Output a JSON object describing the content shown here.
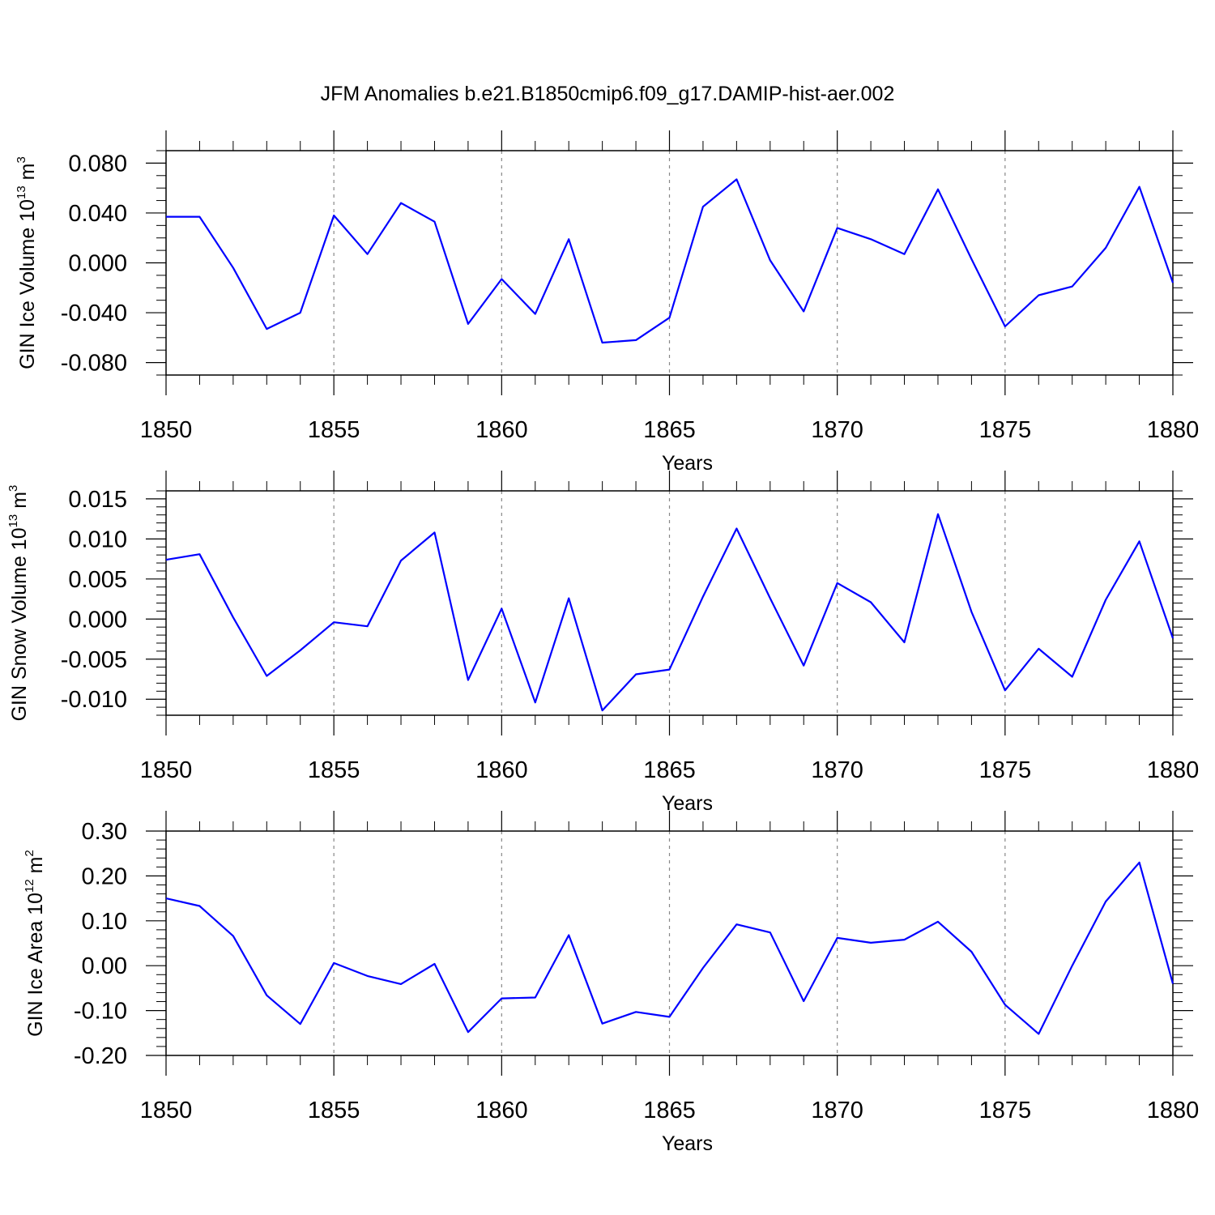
{
  "figure": {
    "title": "JFM Anomalies b.e21.B1850cmip6.f09_g17.DAMIP-hist-aer.002",
    "line_color": "#0000FF",
    "grid_color": "#888888"
  },
  "chart_data": [
    {
      "type": "line",
      "title": "JFM Anomalies b.e21.B1850cmip6.f09_g17.DAMIP-hist-aer.002",
      "xlabel": "Years",
      "ylabel": {
        "base": "GIN Ice Volume 10",
        "exp1": "13",
        "mid": " m",
        "exp2": "3"
      },
      "xlim": [
        1850,
        1880
      ],
      "ylim": [
        -0.09,
        0.09
      ],
      "xticks": [
        1850,
        1855,
        1860,
        1865,
        1870,
        1875,
        1880
      ],
      "xtick_labels": [
        "1850",
        "1855",
        "1860",
        "1865",
        "1870",
        "1875",
        "1880"
      ],
      "yticks": [
        -0.08,
        -0.04,
        0.0,
        0.04,
        0.08
      ],
      "ytick_labels": [
        "-0.080",
        "-0.040",
        "0.000",
        "0.040",
        "0.080"
      ],
      "grid": "vertical-dashed",
      "x": [
        1850,
        1851,
        1852,
        1853,
        1854,
        1855,
        1856,
        1857,
        1858,
        1859,
        1860,
        1861,
        1862,
        1863,
        1864,
        1865,
        1866,
        1867,
        1868,
        1869,
        1870,
        1871,
        1872,
        1873,
        1874,
        1875,
        1876,
        1877,
        1878,
        1879,
        1880
      ],
      "series": [
        {
          "values": [
            0.037,
            0.037,
            -0.004,
            -0.053,
            -0.04,
            0.038,
            0.007,
            0.048,
            0.033,
            -0.049,
            -0.013,
            -0.041,
            0.019,
            -0.064,
            -0.062,
            -0.044,
            0.045,
            0.067,
            0.002,
            -0.039,
            0.028,
            0.019,
            0.007,
            0.059,
            0.003,
            -0.051,
            -0.026,
            -0.019,
            0.012,
            0.061,
            -0.016
          ]
        }
      ]
    },
    {
      "type": "line",
      "xlabel": "Years",
      "ylabel": {
        "base": "GIN Snow Volume 10",
        "exp1": "13",
        "mid": " m",
        "exp2": "3"
      },
      "xlim": [
        1850,
        1880
      ],
      "ylim": [
        -0.012,
        0.016
      ],
      "xticks": [
        1850,
        1855,
        1860,
        1865,
        1870,
        1875,
        1880
      ],
      "xtick_labels": [
        "1850",
        "1855",
        "1860",
        "1865",
        "1870",
        "1875",
        "1880"
      ],
      "yticks": [
        -0.01,
        -0.005,
        0.0,
        0.005,
        0.01,
        0.015
      ],
      "ytick_labels": [
        "-0.010",
        "-0.005",
        "0.000",
        "0.005",
        "0.010",
        "0.015"
      ],
      "grid": "vertical-dashed",
      "x": [
        1850,
        1851,
        1852,
        1853,
        1854,
        1855,
        1856,
        1857,
        1858,
        1859,
        1860,
        1861,
        1862,
        1863,
        1864,
        1865,
        1866,
        1867,
        1868,
        1869,
        1870,
        1871,
        1872,
        1873,
        1874,
        1875,
        1876,
        1877,
        1878,
        1879,
        1880
      ],
      "series": [
        {
          "values": [
            0.0074,
            0.0081,
            0.0002,
            -0.0071,
            -0.0039,
            -0.0004,
            -0.0009,
            0.0073,
            0.0108,
            -0.0076,
            0.0013,
            -0.0104,
            0.0026,
            -0.0114,
            -0.0069,
            -0.0063,
            0.0028,
            0.0113,
            0.0026,
            -0.0058,
            0.0045,
            0.0021,
            -0.0029,
            0.0131,
            0.0009,
            -0.0089,
            -0.0037,
            -0.0072,
            0.0024,
            0.0097,
            -0.0024
          ]
        }
      ]
    },
    {
      "type": "line",
      "xlabel": "Years",
      "ylabel": {
        "base": "GIN Ice Area 10",
        "exp1": "12",
        "mid": " m",
        "exp2": "2"
      },
      "xlim": [
        1850,
        1880
      ],
      "ylim": [
        -0.2,
        0.3
      ],
      "xticks": [
        1850,
        1855,
        1860,
        1865,
        1870,
        1875,
        1880
      ],
      "xtick_labels": [
        "1850",
        "1855",
        "1860",
        "1865",
        "1870",
        "1875",
        "1880"
      ],
      "yticks": [
        -0.2,
        -0.1,
        0.0,
        0.1,
        0.2,
        0.3
      ],
      "ytick_labels": [
        "-0.20",
        "-0.10",
        "0.00",
        "0.10",
        "0.20",
        "0.30"
      ],
      "grid": "vertical-dashed",
      "x": [
        1850,
        1851,
        1852,
        1853,
        1854,
        1855,
        1856,
        1857,
        1858,
        1859,
        1860,
        1861,
        1862,
        1863,
        1864,
        1865,
        1866,
        1867,
        1868,
        1869,
        1870,
        1871,
        1872,
        1873,
        1874,
        1875,
        1876,
        1877,
        1878,
        1879,
        1880
      ],
      "series": [
        {
          "values": [
            0.15,
            0.133,
            0.066,
            -0.066,
            -0.13,
            0.006,
            -0.023,
            -0.041,
            0.004,
            -0.148,
            -0.073,
            -0.071,
            0.068,
            -0.129,
            -0.103,
            -0.114,
            -0.005,
            0.092,
            0.074,
            -0.079,
            0.062,
            0.051,
            0.058,
            0.098,
            0.031,
            -0.087,
            -0.152,
            0.0,
            0.143,
            0.23,
            -0.04
          ]
        }
      ]
    }
  ]
}
